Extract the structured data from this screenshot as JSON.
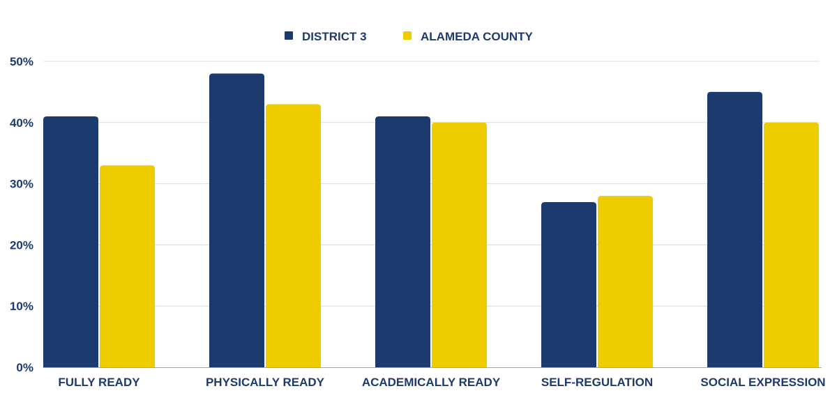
{
  "chart_data": {
    "type": "bar",
    "categories": [
      "FULLY READY",
      "PHYSICALLY READY",
      "ACADEMICALLY READY",
      "SELF-REGULATION",
      "SOCIAL EXPRESSION"
    ],
    "series": [
      {
        "name": "DISTRICT 3",
        "color": "#1d3a6e",
        "values": [
          41,
          48,
          41,
          27,
          45
        ]
      },
      {
        "name": "ALAMEDA COUNTY",
        "color": "#eecc00",
        "values": [
          33,
          43,
          40,
          28,
          40
        ]
      }
    ],
    "yticks": [
      "0%",
      "10%",
      "20%",
      "30%",
      "40%",
      "50%"
    ],
    "ylim": [
      0,
      50
    ],
    "grid": true,
    "legend": "top-center"
  }
}
